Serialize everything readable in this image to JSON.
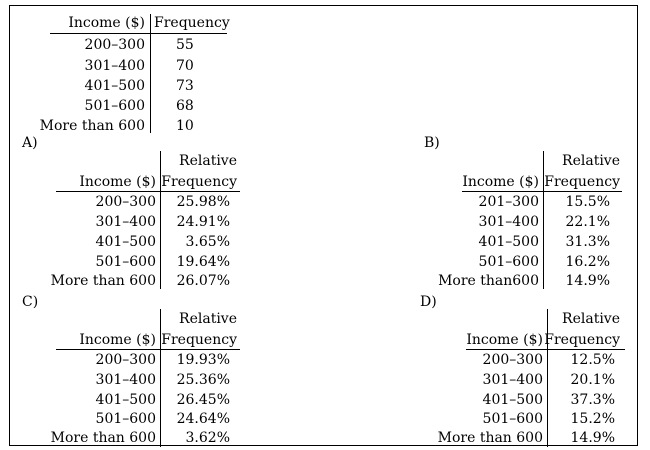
{
  "question_table": {
    "headers": [
      "Income ($)",
      "Frequency"
    ],
    "rows": [
      [
        "200–300",
        "55"
      ],
      [
        "301–400",
        "70"
      ],
      [
        "401–500",
        "73"
      ],
      [
        "501–600",
        "68"
      ],
      [
        "More than 600",
        "10"
      ]
    ]
  },
  "choices": [
    {
      "label": "A)",
      "header_income": "Income ($)",
      "header_rel1": "Relative",
      "header_rel2": "Frequency",
      "rows": [
        [
          "200–300",
          "25.98%"
        ],
        [
          "301–400",
          "24.91%"
        ],
        [
          "401–500",
          "3.65%"
        ],
        [
          "501–600",
          "19.64%"
        ],
        [
          "More than 600",
          "26.07%"
        ]
      ]
    },
    {
      "label": "B)",
      "header_income": "Income ($)",
      "header_rel1": "Relative",
      "header_rel2": "Frequency",
      "rows": [
        [
          "201–300",
          "15.5%"
        ],
        [
          "301–400",
          "22.1%"
        ],
        [
          "401–500",
          "31.3%"
        ],
        [
          "501–600",
          "16.2%"
        ],
        [
          "More than600",
          "14.9%"
        ]
      ]
    },
    {
      "label": "C)",
      "header_income": "Income ($)",
      "header_rel1": "Relative",
      "header_rel2": "Frequency",
      "rows": [
        [
          "200–300",
          "19.93%"
        ],
        [
          "301–400",
          "25.36%"
        ],
        [
          "401–500",
          "26.45%"
        ],
        [
          "501–600",
          "24.64%"
        ],
        [
          "More than 600",
          "3.62%"
        ]
      ]
    },
    {
      "label": "D)",
      "header_income": "Income ($)",
      "header_rel1": "Relative",
      "header_rel2": "Frequency",
      "rows": [
        [
          "200–300",
          "12.5%"
        ],
        [
          "301–400",
          "20.1%"
        ],
        [
          "401–500",
          "37.3%"
        ],
        [
          "501–600",
          "15.2%"
        ],
        [
          "More than 600",
          "14.9%"
        ]
      ]
    }
  ]
}
